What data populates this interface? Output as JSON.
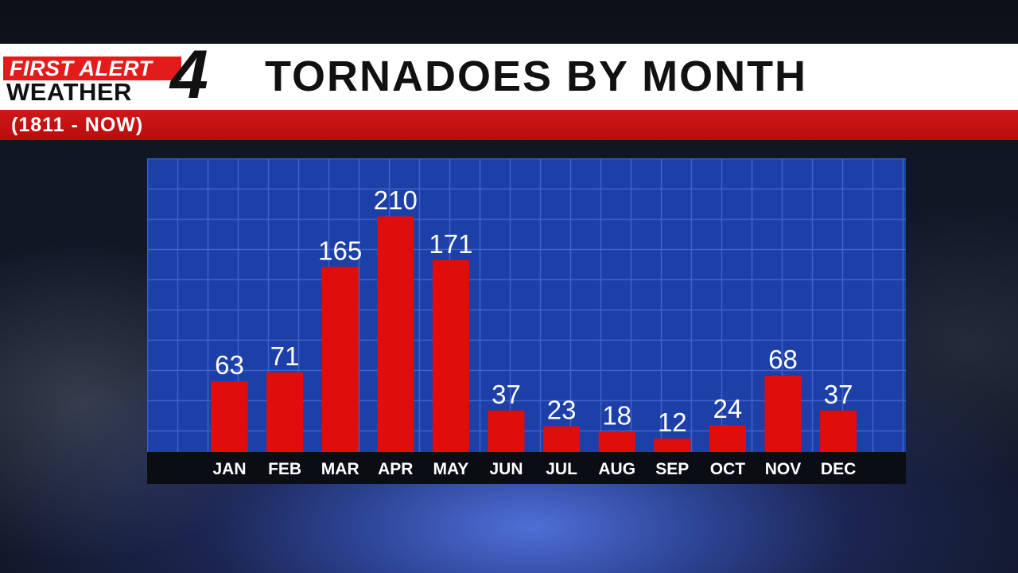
{
  "logo": {
    "line1": "FIRST ALERT",
    "line2": "WEATHER",
    "number": "4"
  },
  "header": {
    "title": "TORNADOES BY MONTH",
    "subtitle": "(1811 - NOW)"
  },
  "colors": {
    "bar": "#e00d0d",
    "plot_background": "#1c3fa8",
    "grid": "#3f63c9",
    "axis_band": "#0b0d14",
    "title_bar": "#ffffff",
    "subtitle_bar": "#c81414",
    "text_light": "#ffffff",
    "text_dark": "#111111"
  },
  "chart_data": {
    "type": "bar",
    "title": "TORNADOES BY MONTH",
    "subtitle": "(1811 - NOW)",
    "categories": [
      "JAN",
      "FEB",
      "MAR",
      "APR",
      "MAY",
      "JUN",
      "JUL",
      "AUG",
      "SEP",
      "OCT",
      "NOV",
      "DEC"
    ],
    "values": [
      63,
      71,
      165,
      210,
      171,
      37,
      23,
      18,
      12,
      24,
      68,
      37
    ],
    "data_labels": [
      "63",
      "71",
      "165",
      "210",
      "171",
      "37",
      "23",
      "18",
      "12",
      "24",
      "68",
      "37"
    ],
    "xlabel": "",
    "ylabel": "",
    "ylim": [
      0,
      260
    ],
    "grid": true,
    "legend": "none"
  }
}
